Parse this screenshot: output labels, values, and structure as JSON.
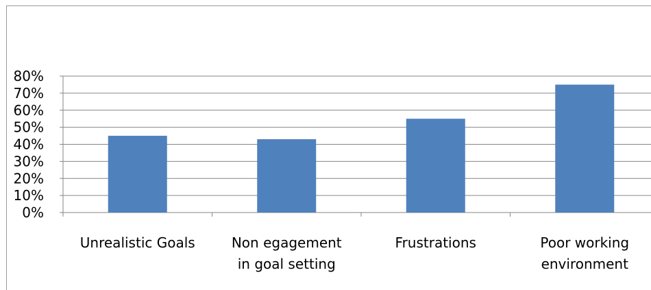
{
  "chart_data": {
    "type": "bar",
    "categories": [
      [
        "Unrealistic Goals"
      ],
      [
        "Non egagement",
        "in goal setting"
      ],
      [
        "Frustrations"
      ],
      [
        "Poor working",
        "environment"
      ]
    ],
    "values": [
      45,
      43,
      55,
      75
    ],
    "y_ticks": [
      "0%",
      "10%",
      "20%",
      "30%",
      "40%",
      "50%",
      "60%",
      "70%",
      "80%"
    ],
    "ylim": [
      0,
      80
    ],
    "grid": true,
    "bar_color": "#4F81BD",
    "grid_color": "#868686"
  }
}
